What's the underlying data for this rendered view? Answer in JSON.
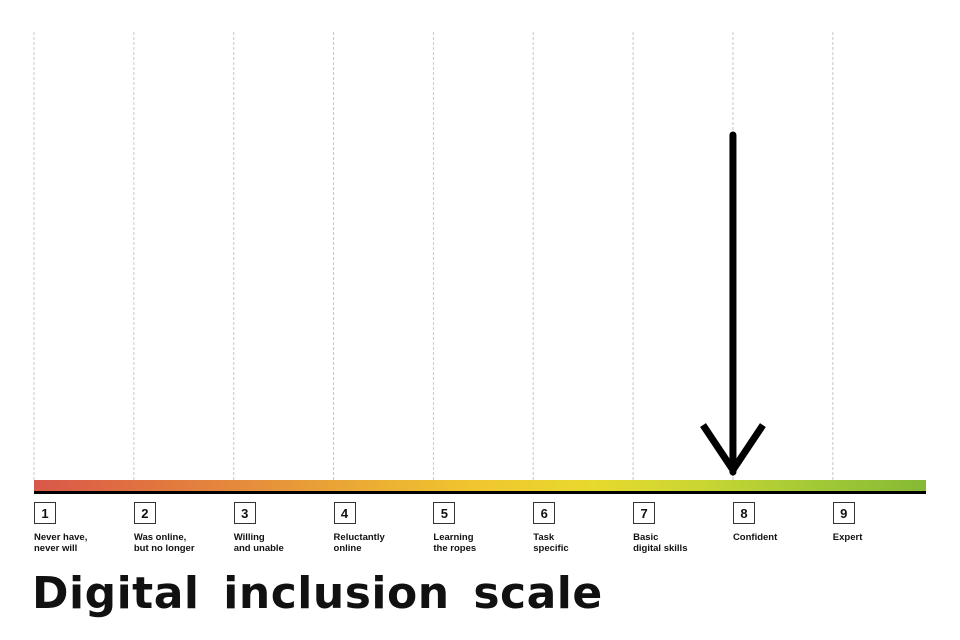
{
  "title": "Digital inclusion scale",
  "marker": {
    "icon": "arrow-down-icon",
    "position_step": 8,
    "color": "#000000"
  },
  "scale": {
    "baseline_color": "#000000",
    "gridline_color": "#c8c8c8",
    "gradient_colors": [
      "#d9574a",
      "#e0733f",
      "#e68f3c",
      "#ebad33",
      "#f0c72e",
      "#e8d92e",
      "#c9d632",
      "#a3c936",
      "#86b935"
    ],
    "steps": [
      {
        "number": "1",
        "label": "Never have,\nnever will"
      },
      {
        "number": "2",
        "label": "Was online,\nbut no longer"
      },
      {
        "number": "3",
        "label": "Willing\nand unable"
      },
      {
        "number": "4",
        "label": "Reluctantly\nonline"
      },
      {
        "number": "5",
        "label": "Learning\nthe ropes"
      },
      {
        "number": "6",
        "label": "Task\nspecific"
      },
      {
        "number": "7",
        "label": "Basic\ndigital skills"
      },
      {
        "number": "8",
        "label": "Confident"
      },
      {
        "number": "9",
        "label": "Expert"
      }
    ]
  }
}
